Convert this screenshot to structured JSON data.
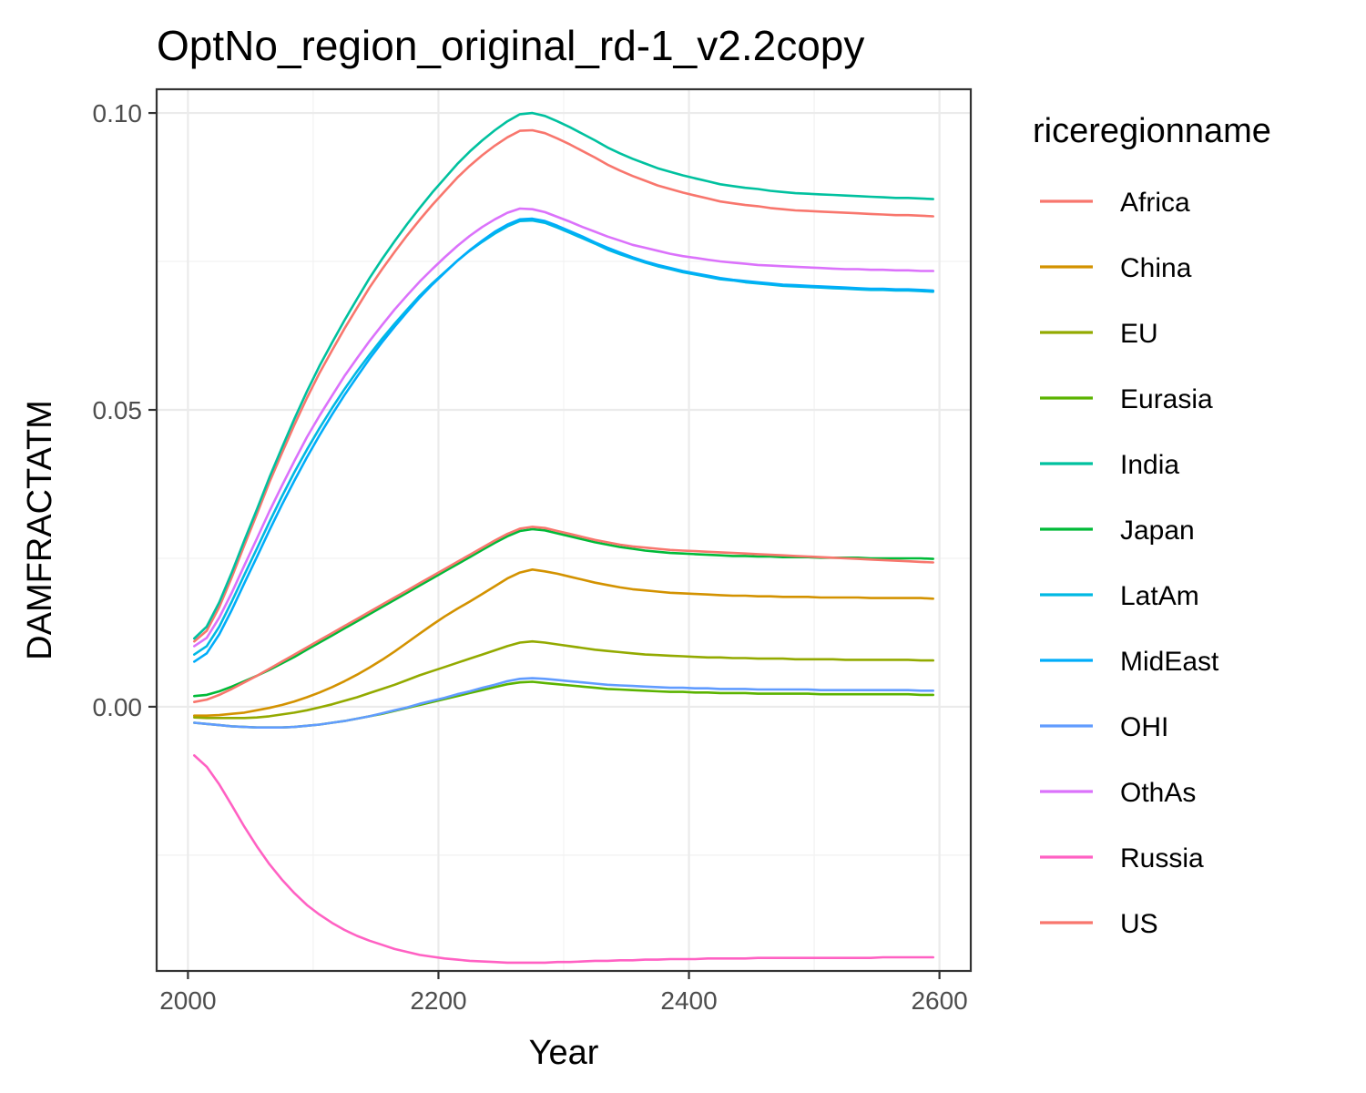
{
  "chart_data": {
    "type": "line",
    "title": "OptNo_region_original_rd-1_v2.2copy",
    "xlabel": "Year",
    "ylabel": "DAMFRACTATM",
    "xlim": [
      1975,
      2625
    ],
    "ylim": [
      -0.0445,
      0.104
    ],
    "x_ticks": [
      2000,
      2200,
      2400,
      2600
    ],
    "x_tick_labels": [
      "2000",
      "2200",
      "2400",
      "2600"
    ],
    "x_minor": [
      2100,
      2300,
      2500
    ],
    "y_ticks": [
      0.0,
      0.05,
      0.1
    ],
    "y_tick_labels": [
      "0.00",
      "0.05",
      "0.10"
    ],
    "y_minor": [
      -0.025,
      0.025,
      0.075
    ],
    "grid": true,
    "legend": {
      "title": "riceregionname",
      "position": "right"
    },
    "x": [
      2005,
      2015,
      2025,
      2035,
      2045,
      2055,
      2065,
      2075,
      2085,
      2095,
      2105,
      2115,
      2125,
      2135,
      2145,
      2155,
      2165,
      2175,
      2185,
      2195,
      2205,
      2215,
      2225,
      2235,
      2245,
      2255,
      2265,
      2275,
      2285,
      2295,
      2305,
      2315,
      2325,
      2335,
      2345,
      2355,
      2365,
      2375,
      2385,
      2395,
      2405,
      2415,
      2425,
      2435,
      2445,
      2455,
      2465,
      2475,
      2485,
      2495,
      2505,
      2515,
      2525,
      2535,
      2545,
      2555,
      2565,
      2575,
      2585,
      2595
    ],
    "series": [
      {
        "name": "Africa",
        "color": "#F8766D",
        "values": [
          0.011,
          0.0128,
          0.0168,
          0.0218,
          0.0272,
          0.0324,
          0.0378,
          0.0427,
          0.0475,
          0.052,
          0.0562,
          0.06,
          0.0637,
          0.0672,
          0.0706,
          0.0737,
          0.0766,
          0.0794,
          0.082,
          0.0845,
          0.0868,
          0.0891,
          0.0911,
          0.0929,
          0.0945,
          0.0959,
          0.097,
          0.0971,
          0.0966,
          0.0957,
          0.0947,
          0.0936,
          0.0925,
          0.0913,
          0.0903,
          0.0894,
          0.0886,
          0.0878,
          0.0872,
          0.0866,
          0.0861,
          0.0856,
          0.0851,
          0.0848,
          0.0845,
          0.0843,
          0.084,
          0.0838,
          0.0836,
          0.0835,
          0.0834,
          0.0833,
          0.0832,
          0.0831,
          0.083,
          0.0829,
          0.0828,
          0.0828,
          0.0827,
          0.0826
        ]
      },
      {
        "name": "China",
        "color": "#D39200",
        "values": [
          -0.0015,
          -0.0015,
          -0.0014,
          -0.0012,
          -0.001,
          -0.0006,
          -0.0002,
          0.0003,
          0.0009,
          0.0016,
          0.0024,
          0.0033,
          0.0043,
          0.0054,
          0.0066,
          0.0079,
          0.0093,
          0.0108,
          0.0123,
          0.0138,
          0.0152,
          0.0165,
          0.0177,
          0.019,
          0.0203,
          0.0216,
          0.0226,
          0.0231,
          0.0228,
          0.0224,
          0.0219,
          0.0214,
          0.0209,
          0.0205,
          0.0201,
          0.0198,
          0.0196,
          0.0194,
          0.0192,
          0.0191,
          0.019,
          0.0189,
          0.0188,
          0.0187,
          0.0187,
          0.0186,
          0.0186,
          0.0185,
          0.0185,
          0.0185,
          0.0184,
          0.0184,
          0.0184,
          0.0184,
          0.0183,
          0.0183,
          0.0183,
          0.0183,
          0.0183,
          0.0182
        ]
      },
      {
        "name": "EU",
        "color": "#93AA00",
        "values": [
          -0.0018,
          -0.0019,
          -0.0019,
          -0.0019,
          -0.0019,
          -0.0018,
          -0.0016,
          -0.0013,
          -0.001,
          -0.0006,
          -0.0001,
          0.0004,
          0.001,
          0.0016,
          0.0023,
          0.003,
          0.0037,
          0.0045,
          0.0053,
          0.006,
          0.0067,
          0.0074,
          0.0081,
          0.0088,
          0.0095,
          0.0102,
          0.0108,
          0.011,
          0.0108,
          0.0105,
          0.0102,
          0.0099,
          0.0096,
          0.0094,
          0.0092,
          0.009,
          0.0088,
          0.0087,
          0.0086,
          0.0085,
          0.0084,
          0.0083,
          0.0083,
          0.0082,
          0.0082,
          0.0081,
          0.0081,
          0.0081,
          0.008,
          0.008,
          0.008,
          0.008,
          0.0079,
          0.0079,
          0.0079,
          0.0079,
          0.0079,
          0.0079,
          0.0078,
          0.0078
        ]
      },
      {
        "name": "Eurasia",
        "color": "#5BB300",
        "values": [
          -0.0027,
          -0.0029,
          -0.0031,
          -0.0033,
          -0.0034,
          -0.0035,
          -0.0035,
          -0.0035,
          -0.0034,
          -0.0032,
          -0.003,
          -0.0027,
          -0.0024,
          -0.002,
          -0.0016,
          -0.0012,
          -0.0007,
          -0.0002,
          0.0003,
          0.0008,
          0.0013,
          0.0018,
          0.0023,
          0.0028,
          0.0033,
          0.0038,
          0.0041,
          0.0042,
          0.004,
          0.0038,
          0.0036,
          0.0034,
          0.0032,
          0.003,
          0.0029,
          0.0028,
          0.0027,
          0.0026,
          0.0025,
          0.0025,
          0.0024,
          0.0024,
          0.0023,
          0.0023,
          0.0023,
          0.0022,
          0.0022,
          0.0022,
          0.0022,
          0.0022,
          0.0021,
          0.0021,
          0.0021,
          0.0021,
          0.0021,
          0.0021,
          0.0021,
          0.0021,
          0.002,
          0.002
        ]
      },
      {
        "name": "India",
        "color": "#00C19F",
        "values": [
          0.0115,
          0.0135,
          0.0176,
          0.0226,
          0.028,
          0.0332,
          0.0386,
          0.0436,
          0.0485,
          0.0531,
          0.0574,
          0.0613,
          0.0651,
          0.0687,
          0.0722,
          0.0754,
          0.0784,
          0.0813,
          0.084,
          0.0866,
          0.089,
          0.0914,
          0.0935,
          0.0954,
          0.0971,
          0.0986,
          0.0998,
          0.1,
          0.0995,
          0.0986,
          0.0976,
          0.0965,
          0.0954,
          0.0942,
          0.0932,
          0.0923,
          0.0915,
          0.0907,
          0.0901,
          0.0895,
          0.089,
          0.0885,
          0.088,
          0.0877,
          0.0874,
          0.0872,
          0.0869,
          0.0867,
          0.0865,
          0.0864,
          0.0863,
          0.0862,
          0.0861,
          0.086,
          0.0859,
          0.0858,
          0.0857,
          0.0857,
          0.0856,
          0.0855
        ]
      },
      {
        "name": "Japan",
        "color": "#00BA38",
        "values": [
          0.0018,
          0.002,
          0.0026,
          0.0034,
          0.0043,
          0.0052,
          0.0062,
          0.0073,
          0.0084,
          0.0096,
          0.0108,
          0.012,
          0.0132,
          0.0144,
          0.0156,
          0.0168,
          0.018,
          0.0192,
          0.0204,
          0.0216,
          0.0228,
          0.024,
          0.0252,
          0.0264,
          0.0276,
          0.0287,
          0.0296,
          0.0299,
          0.0297,
          0.0292,
          0.0287,
          0.0282,
          0.0277,
          0.0273,
          0.0269,
          0.0266,
          0.0263,
          0.0261,
          0.0259,
          0.0258,
          0.0257,
          0.0256,
          0.0255,
          0.0254,
          0.0254,
          0.0253,
          0.0253,
          0.0252,
          0.0252,
          0.0252,
          0.0251,
          0.0251,
          0.0251,
          0.0251,
          0.025,
          0.025,
          0.025,
          0.025,
          0.025,
          0.0249
        ]
      },
      {
        "name": "LatAm",
        "color": "#00B9E3",
        "values": [
          0.0088,
          0.0102,
          0.0135,
          0.0177,
          0.0222,
          0.0266,
          0.0311,
          0.0354,
          0.0395,
          0.0433,
          0.0469,
          0.0503,
          0.0535,
          0.0565,
          0.0593,
          0.062,
          0.0645,
          0.0669,
          0.0692,
          0.0713,
          0.0732,
          0.0751,
          0.0768,
          0.0783,
          0.0797,
          0.0809,
          0.0818,
          0.0819,
          0.0815,
          0.0807,
          0.0798,
          0.0789,
          0.078,
          0.077,
          0.0762,
          0.0755,
          0.0748,
          0.0742,
          0.0737,
          0.0732,
          0.0728,
          0.0724,
          0.072,
          0.0718,
          0.0715,
          0.0713,
          0.0711,
          0.0709,
          0.0708,
          0.0707,
          0.0706,
          0.0705,
          0.0704,
          0.0703,
          0.0702,
          0.0702,
          0.0701,
          0.0701,
          0.07,
          0.0699
        ]
      },
      {
        "name": "MidEast",
        "color": "#00ADFA",
        "values": [
          0.0076,
          0.009,
          0.0122,
          0.0163,
          0.0208,
          0.0252,
          0.0297,
          0.034,
          0.0381,
          0.042,
          0.0457,
          0.0492,
          0.0525,
          0.0556,
          0.0586,
          0.0614,
          0.064,
          0.0665,
          0.0689,
          0.0711,
          0.0731,
          0.0751,
          0.0769,
          0.0785,
          0.08,
          0.0812,
          0.0821,
          0.0822,
          0.0818,
          0.081,
          0.0801,
          0.0792,
          0.0782,
          0.0773,
          0.0765,
          0.0757,
          0.075,
          0.0744,
          0.0739,
          0.0734,
          0.073,
          0.0726,
          0.0722,
          0.0719,
          0.0717,
          0.0715,
          0.0713,
          0.0711,
          0.071,
          0.0709,
          0.0708,
          0.0707,
          0.0706,
          0.0705,
          0.0704,
          0.0704,
          0.0703,
          0.0703,
          0.0702,
          0.0701
        ]
      },
      {
        "name": "OHI",
        "color": "#619CFF",
        "values": [
          -0.0027,
          -0.0029,
          -0.0031,
          -0.0033,
          -0.0034,
          -0.0035,
          -0.0035,
          -0.0035,
          -0.0034,
          -0.0032,
          -0.003,
          -0.0027,
          -0.0024,
          -0.002,
          -0.0016,
          -0.0011,
          -0.0006,
          -0.0001,
          0.0005,
          0.001,
          0.0015,
          0.0021,
          0.0026,
          0.0032,
          0.0037,
          0.0043,
          0.0047,
          0.0048,
          0.0047,
          0.0045,
          0.0043,
          0.0041,
          0.0039,
          0.0037,
          0.0036,
          0.0035,
          0.0034,
          0.0033,
          0.0032,
          0.0032,
          0.0031,
          0.0031,
          0.003,
          0.003,
          0.003,
          0.0029,
          0.0029,
          0.0029,
          0.0029,
          0.0029,
          0.0028,
          0.0028,
          0.0028,
          0.0028,
          0.0028,
          0.0028,
          0.0028,
          0.0028,
          0.0027,
          0.0027
        ]
      },
      {
        "name": "OthAs",
        "color": "#DB72FB",
        "values": [
          0.0102,
          0.0116,
          0.015,
          0.0192,
          0.0238,
          0.0283,
          0.0329,
          0.0372,
          0.0414,
          0.0454,
          0.049,
          0.0524,
          0.0557,
          0.0587,
          0.0616,
          0.0643,
          0.0669,
          0.0693,
          0.0716,
          0.0737,
          0.0757,
          0.0776,
          0.0793,
          0.0808,
          0.0821,
          0.0832,
          0.0839,
          0.0838,
          0.0833,
          0.0825,
          0.0817,
          0.0808,
          0.08,
          0.0792,
          0.0785,
          0.0778,
          0.0773,
          0.0768,
          0.0763,
          0.0759,
          0.0756,
          0.0753,
          0.075,
          0.0748,
          0.0746,
          0.0744,
          0.0743,
          0.0742,
          0.0741,
          0.074,
          0.0739,
          0.0738,
          0.0737,
          0.0737,
          0.0736,
          0.0736,
          0.0735,
          0.0735,
          0.0734,
          0.0734
        ]
      },
      {
        "name": "Russia",
        "color": "#FF61C3",
        "values": [
          -0.0082,
          -0.0101,
          -0.0131,
          -0.0166,
          -0.0202,
          -0.0235,
          -0.0265,
          -0.0291,
          -0.0314,
          -0.0334,
          -0.035,
          -0.0364,
          -0.0376,
          -0.0386,
          -0.0394,
          -0.0401,
          -0.0408,
          -0.0413,
          -0.0418,
          -0.0421,
          -0.0424,
          -0.0426,
          -0.0428,
          -0.0429,
          -0.043,
          -0.0431,
          -0.0431,
          -0.0431,
          -0.0431,
          -0.043,
          -0.043,
          -0.0429,
          -0.0428,
          -0.0428,
          -0.0427,
          -0.0427,
          -0.0426,
          -0.0426,
          -0.0425,
          -0.0425,
          -0.0425,
          -0.0424,
          -0.0424,
          -0.0424,
          -0.0424,
          -0.0423,
          -0.0423,
          -0.0423,
          -0.0423,
          -0.0423,
          -0.0423,
          -0.0423,
          -0.0423,
          -0.0423,
          -0.0423,
          -0.0422,
          -0.0422,
          -0.0422,
          -0.0422,
          -0.0422
        ]
      },
      {
        "name": "US",
        "color": "#F8766D",
        "values": [
          0.0008,
          0.0012,
          0.002,
          0.003,
          0.0041,
          0.0052,
          0.0064,
          0.0076,
          0.0088,
          0.01,
          0.0112,
          0.0124,
          0.0136,
          0.0148,
          0.016,
          0.0172,
          0.0184,
          0.0196,
          0.0208,
          0.022,
          0.0232,
          0.0244,
          0.0256,
          0.0268,
          0.028,
          0.0291,
          0.03,
          0.0303,
          0.0301,
          0.0296,
          0.0291,
          0.0286,
          0.0281,
          0.0277,
          0.0273,
          0.027,
          0.0268,
          0.0266,
          0.0264,
          0.0263,
          0.0262,
          0.0261,
          0.026,
          0.0259,
          0.0258,
          0.0257,
          0.0256,
          0.0255,
          0.0254,
          0.0253,
          0.0252,
          0.0251,
          0.025,
          0.0249,
          0.0248,
          0.0247,
          0.0246,
          0.0245,
          0.0244,
          0.0243
        ]
      }
    ]
  }
}
